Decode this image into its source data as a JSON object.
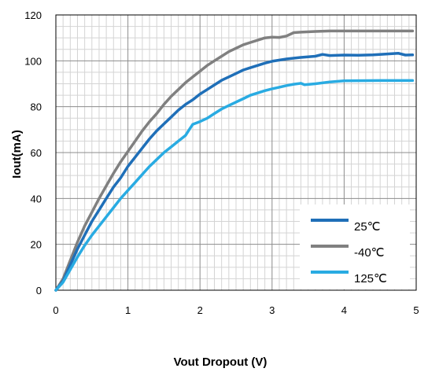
{
  "chart_data": {
    "type": "line",
    "xlabel": "Vout Dropout (V)",
    "ylabel": "Iout(mA)",
    "xlim": [
      0,
      5
    ],
    "ylim": [
      0,
      120
    ],
    "x_ticks": [
      "0",
      "1",
      "2",
      "3",
      "4",
      "5"
    ],
    "y_ticks": [
      "0",
      "20",
      "40",
      "60",
      "80",
      "100",
      "120"
    ],
    "grid": true,
    "legend_position": "bottom-right",
    "series": [
      {
        "name": "25℃",
        "color": "#1f6fb8",
        "points": [
          [
            0,
            0
          ],
          [
            0.1,
            4
          ],
          [
            0.2,
            11
          ],
          [
            0.3,
            18
          ],
          [
            0.4,
            24
          ],
          [
            0.5,
            30
          ],
          [
            0.6,
            35
          ],
          [
            0.7,
            40
          ],
          [
            0.8,
            45
          ],
          [
            0.9,
            49
          ],
          [
            1.0,
            54
          ],
          [
            1.1,
            58
          ],
          [
            1.2,
            62
          ],
          [
            1.3,
            66
          ],
          [
            1.4,
            69.5
          ],
          [
            1.5,
            72.5
          ],
          [
            1.6,
            75.5
          ],
          [
            1.7,
            78.5
          ],
          [
            1.8,
            81
          ],
          [
            1.9,
            83
          ],
          [
            2.0,
            85.5
          ],
          [
            2.1,
            87.5
          ],
          [
            2.2,
            89.5
          ],
          [
            2.3,
            91.5
          ],
          [
            2.4,
            93
          ],
          [
            2.5,
            94.5
          ],
          [
            2.6,
            96
          ],
          [
            2.7,
            97
          ],
          [
            2.8,
            98
          ],
          [
            2.9,
            99
          ],
          [
            3.0,
            99.8
          ],
          [
            3.2,
            100.8
          ],
          [
            3.4,
            101.5
          ],
          [
            3.6,
            102
          ],
          [
            3.7,
            102.8
          ],
          [
            3.8,
            102.3
          ],
          [
            4.0,
            102.5
          ],
          [
            4.2,
            102.4
          ],
          [
            4.4,
            102.6
          ],
          [
            4.6,
            103
          ],
          [
            4.75,
            103.3
          ],
          [
            4.85,
            102.5
          ],
          [
            4.95,
            102.6
          ]
        ]
      },
      {
        "name": "-40℃",
        "color": "#808080",
        "points": [
          [
            0,
            0
          ],
          [
            0.1,
            5
          ],
          [
            0.2,
            13
          ],
          [
            0.3,
            21
          ],
          [
            0.4,
            28
          ],
          [
            0.5,
            34
          ],
          [
            0.6,
            40
          ],
          [
            0.7,
            45.5
          ],
          [
            0.8,
            51
          ],
          [
            0.9,
            56
          ],
          [
            1.0,
            60.5
          ],
          [
            1.1,
            65
          ],
          [
            1.2,
            69.5
          ],
          [
            1.3,
            73.5
          ],
          [
            1.4,
            77
          ],
          [
            1.5,
            81
          ],
          [
            1.6,
            84.5
          ],
          [
            1.7,
            87.5
          ],
          [
            1.8,
            90.5
          ],
          [
            1.9,
            93
          ],
          [
            2.0,
            95.5
          ],
          [
            2.1,
            98
          ],
          [
            2.2,
            100
          ],
          [
            2.3,
            102
          ],
          [
            2.4,
            104
          ],
          [
            2.5,
            105.5
          ],
          [
            2.6,
            107
          ],
          [
            2.7,
            108
          ],
          [
            2.8,
            109
          ],
          [
            2.9,
            110
          ],
          [
            3.0,
            110.3
          ],
          [
            3.1,
            110.2
          ],
          [
            3.2,
            110.8
          ],
          [
            3.3,
            112.3
          ],
          [
            3.4,
            112.5
          ],
          [
            3.6,
            112.8
          ],
          [
            3.8,
            113
          ],
          [
            4.0,
            113
          ],
          [
            4.5,
            113
          ],
          [
            4.95,
            113
          ]
        ]
      },
      {
        "name": "125℃",
        "color": "#29abe2",
        "points": [
          [
            0,
            0
          ],
          [
            0.1,
            3.5
          ],
          [
            0.2,
            9
          ],
          [
            0.3,
            14.5
          ],
          [
            0.4,
            19.5
          ],
          [
            0.5,
            24
          ],
          [
            0.6,
            28
          ],
          [
            0.7,
            32
          ],
          [
            0.8,
            36
          ],
          [
            0.9,
            40
          ],
          [
            1.0,
            43.5
          ],
          [
            1.1,
            47
          ],
          [
            1.2,
            50.5
          ],
          [
            1.3,
            54
          ],
          [
            1.4,
            57
          ],
          [
            1.5,
            60
          ],
          [
            1.6,
            62.5
          ],
          [
            1.7,
            65
          ],
          [
            1.8,
            67.5
          ],
          [
            1.85,
            70
          ],
          [
            1.9,
            72.3
          ],
          [
            2.0,
            73.5
          ],
          [
            2.1,
            75
          ],
          [
            2.2,
            77
          ],
          [
            2.3,
            79
          ],
          [
            2.4,
            80.5
          ],
          [
            2.5,
            82
          ],
          [
            2.6,
            83.5
          ],
          [
            2.7,
            85
          ],
          [
            2.8,
            86
          ],
          [
            2.9,
            87
          ],
          [
            3.0,
            87.8
          ],
          [
            3.1,
            88.5
          ],
          [
            3.2,
            89.2
          ],
          [
            3.3,
            89.8
          ],
          [
            3.4,
            90.2
          ],
          [
            3.45,
            89.6
          ],
          [
            3.6,
            90
          ],
          [
            3.8,
            90.8
          ],
          [
            4.0,
            91.3
          ],
          [
            4.5,
            91.4
          ],
          [
            4.95,
            91.4
          ]
        ]
      }
    ]
  }
}
